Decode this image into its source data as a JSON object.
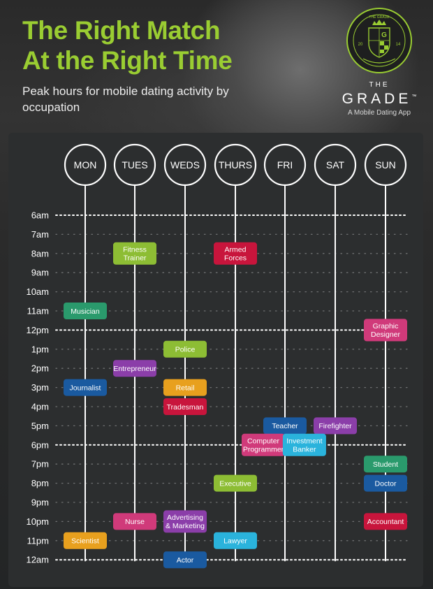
{
  "header": {
    "title_line1": "The Right Match",
    "title_line2": "At the Right Time",
    "subtitle": "Peak hours for mobile dating activity by occupation"
  },
  "brand": {
    "the": "THE",
    "name": "GRADE",
    "tm": "™",
    "tagline": "A Mobile Dating App",
    "seal_top": "THE GRADE",
    "seal_left": "20",
    "seal_right": "14",
    "seal_monogram": "G"
  },
  "colors": {
    "accent": "#9acd32",
    "green": "#8dbd34",
    "red": "#c8153c",
    "teal": "#2a9a6c",
    "blue": "#1a5aa0",
    "purple": "#8b3ea9",
    "orange": "#e8a01e",
    "pink": "#d03a7a",
    "cyan": "#2ab3dc"
  },
  "chart_data": {
    "type": "table",
    "days": [
      "MON",
      "TUES",
      "WEDS",
      "THURS",
      "FRI",
      "SAT",
      "SUN"
    ],
    "hours": [
      "6am",
      "7am",
      "8am",
      "9am",
      "10am",
      "11am",
      "12pm",
      "1pm",
      "2pm",
      "3pm",
      "4pm",
      "5pm",
      "6pm",
      "7pm",
      "8pm",
      "9pm",
      "10pm",
      "11pm",
      "12am"
    ],
    "entries": [
      {
        "occupation": "Fitness\nTrainer",
        "day": "TUES",
        "hour": "8am",
        "color": "green"
      },
      {
        "occupation": "Armed\nForces",
        "day": "THURS",
        "hour": "8am",
        "color": "red"
      },
      {
        "occupation": "Musician",
        "day": "MON",
        "hour": "11am",
        "color": "teal"
      },
      {
        "occupation": "Graphic\nDesigner",
        "day": "SUN",
        "hour": "12pm",
        "color": "pink"
      },
      {
        "occupation": "Police",
        "day": "WEDS",
        "hour": "1pm",
        "color": "green"
      },
      {
        "occupation": "Entrepreneur",
        "day": "TUES",
        "hour": "2pm",
        "color": "purple"
      },
      {
        "occupation": "Journalist",
        "day": "MON",
        "hour": "3pm",
        "color": "blue"
      },
      {
        "occupation": "Retail",
        "day": "WEDS",
        "hour": "3pm",
        "color": "orange"
      },
      {
        "occupation": "Tradesman",
        "day": "WEDS",
        "hour": "4pm",
        "color": "red"
      },
      {
        "occupation": "Teacher",
        "day": "FRI",
        "hour": "5pm",
        "color": "blue"
      },
      {
        "occupation": "Firefighter",
        "day": "SAT",
        "hour": "5pm",
        "color": "purple"
      },
      {
        "occupation": "Computer\nProgrammer",
        "day": "FRI",
        "hour": "6pm",
        "color": "pink",
        "offset": -0.5
      },
      {
        "occupation": "Investment\nBanker",
        "day": "FRI",
        "hour": "6pm",
        "color": "cyan",
        "offset": 0.45
      },
      {
        "occupation": "Student",
        "day": "SUN",
        "hour": "7pm",
        "color": "teal"
      },
      {
        "occupation": "Executive",
        "day": "THURS",
        "hour": "8pm",
        "color": "green"
      },
      {
        "occupation": "Doctor",
        "day": "SUN",
        "hour": "8pm",
        "color": "blue"
      },
      {
        "occupation": "Nurse",
        "day": "TUES",
        "hour": "10pm",
        "color": "pink"
      },
      {
        "occupation": "Advertising\n& Marketing",
        "day": "WEDS",
        "hour": "10pm",
        "color": "purple"
      },
      {
        "occupation": "Accountant",
        "day": "SUN",
        "hour": "10pm",
        "color": "red"
      },
      {
        "occupation": "Scientist",
        "day": "MON",
        "hour": "11pm",
        "color": "orange"
      },
      {
        "occupation": "Lawyer",
        "day": "THURS",
        "hour": "11pm",
        "color": "cyan"
      },
      {
        "occupation": "Actor",
        "day": "WEDS",
        "hour": "12am",
        "color": "blue"
      }
    ],
    "major_gridlines": [
      "6am",
      "12pm",
      "6pm",
      "12am"
    ]
  }
}
